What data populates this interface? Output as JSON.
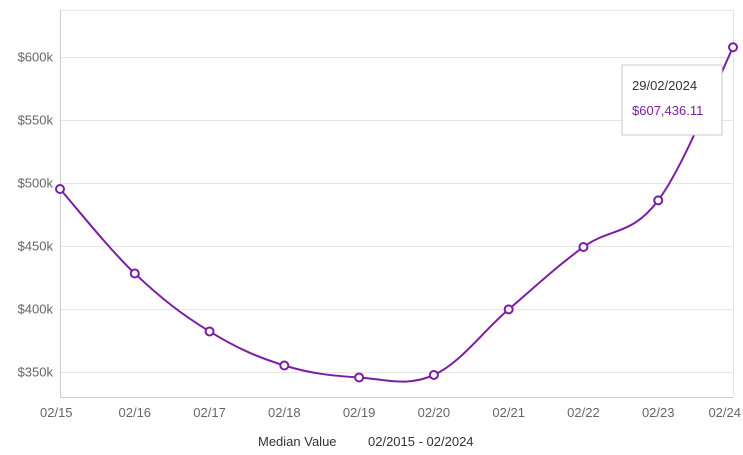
{
  "chart_data": {
    "type": "line",
    "x": [
      "02/15",
      "02/16",
      "02/17",
      "02/18",
      "02/19",
      "02/20",
      "02/21",
      "02/22",
      "02/23",
      "02/24"
    ],
    "series": [
      {
        "values": [
          495000,
          428000,
          382000,
          355000,
          345500,
          347500,
          399500,
          449000,
          486000,
          607436.11
        ]
      }
    ],
    "yticks": [
      350000,
      400000,
      450000,
      500000,
      550000,
      600000
    ],
    "ytick_labels": [
      "$350k",
      "$400k",
      "$450k",
      "$500k",
      "$550k",
      "$600k"
    ],
    "ylim": [
      330000,
      637000
    ],
    "grid": true,
    "line_color": "#7b1fa2",
    "caption": {
      "label": "Median Value",
      "range": "02/2015 - 02/2024"
    },
    "tooltip": {
      "date": "29/02/2024",
      "value": "$607,436.11",
      "value_color": "#7b1fa2"
    }
  }
}
